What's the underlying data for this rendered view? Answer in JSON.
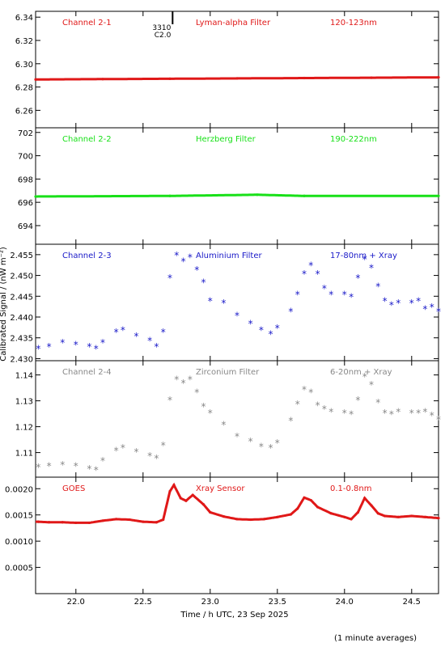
{
  "chart_data": {
    "type": "scatter",
    "xlabel": "Time / h UTC, 23 Sep 2025",
    "ylabel": "Calibrated Signal / (nW m⁻²)",
    "footnote": "(1 minute averages)",
    "xlim": [
      21.7,
      24.7
    ],
    "xticks": [
      "22.0",
      "22.5",
      "23.0",
      "23.5",
      "24.0",
      "24.5"
    ],
    "panels": [
      {
        "channel": "Channel 2-1",
        "filter": "Lyman-alpha Filter",
        "band": "120-123nm",
        "color": "#e01818",
        "marker": "line",
        "ylim": [
          6.245,
          6.345
        ],
        "yticks": [
          "6.34",
          "6.32",
          "6.30",
          "6.28",
          "6.26"
        ],
        "annotation": {
          "lines": [
            "3310",
            "C2.0"
          ],
          "x": 22.72
        },
        "x": [
          21.7,
          22.2,
          22.7,
          23.2,
          23.7,
          24.2,
          24.7
        ],
        "y": [
          6.2865,
          6.2868,
          6.2871,
          6.2874,
          6.2877,
          6.288,
          6.2883
        ]
      },
      {
        "channel": "Channel 2-2",
        "filter": "Herzberg Filter",
        "band": "190-222nm",
        "color": "#18e018",
        "marker": "line",
        "ylim": [
          692.4,
          702.4
        ],
        "yticks": [
          "702",
          "700",
          "698",
          "696",
          "694"
        ],
        "x": [
          21.7,
          22.7,
          23.35,
          23.7,
          24.7
        ],
        "y": [
          696.5,
          696.55,
          696.65,
          696.55,
          696.55
        ]
      },
      {
        "channel": "Channel 2-3",
        "filter": "Aluminium Filter",
        "band": "17-80nm + Xray",
        "color": "#1818c8",
        "marker": "star",
        "ylim": [
          2.4295,
          2.4575
        ],
        "yticks": [
          "2.455",
          "2.450",
          "2.445",
          "2.440",
          "2.435",
          "2.430"
        ],
        "x": [
          21.72,
          21.8,
          21.9,
          22.0,
          22.1,
          22.15,
          22.2,
          22.3,
          22.35,
          22.45,
          22.55,
          22.6,
          22.65,
          22.7,
          22.75,
          22.8,
          22.85,
          22.9,
          22.95,
          23.0,
          23.1,
          23.2,
          23.3,
          23.38,
          23.45,
          23.5,
          23.6,
          23.65,
          23.7,
          23.75,
          23.8,
          23.85,
          23.9,
          24.0,
          24.05,
          24.1,
          24.15,
          24.2,
          24.25,
          24.3,
          24.35,
          24.4,
          24.5,
          24.55,
          24.6,
          24.65,
          24.7
        ],
        "y": [
          2.4325,
          2.433,
          2.434,
          2.4335,
          2.433,
          2.4325,
          2.434,
          2.4365,
          2.437,
          2.4355,
          2.4345,
          2.433,
          2.4365,
          2.4495,
          2.455,
          2.4535,
          2.4545,
          2.4515,
          2.4485,
          2.444,
          2.4435,
          2.4405,
          2.4385,
          2.437,
          2.436,
          2.4375,
          2.4415,
          2.4455,
          2.4505,
          2.4525,
          2.4505,
          2.447,
          2.4455,
          2.4455,
          2.445,
          2.4495,
          2.454,
          2.452,
          2.4475,
          2.444,
          2.443,
          2.4435,
          2.4435,
          2.444,
          2.442,
          2.4425,
          2.4415
        ]
      },
      {
        "channel": "Channel 2-4",
        "filter": "Zirconium Filter",
        "band": "6-20nm + Xray",
        "color": "#888888",
        "marker": "star",
        "ylim": [
          1.1005,
          1.1455
        ],
        "yticks": [
          "1.14",
          "1.13",
          "1.12",
          "1.11"
        ],
        "x": [
          21.72,
          21.8,
          21.9,
          22.0,
          22.1,
          22.15,
          22.2,
          22.3,
          22.35,
          22.45,
          22.55,
          22.6,
          22.65,
          22.7,
          22.75,
          22.8,
          22.85,
          22.9,
          22.95,
          23.0,
          23.1,
          23.2,
          23.3,
          23.38,
          23.45,
          23.5,
          23.6,
          23.65,
          23.7,
          23.75,
          23.8,
          23.85,
          23.9,
          24.0,
          24.05,
          24.1,
          24.15,
          24.2,
          24.25,
          24.3,
          24.35,
          24.4,
          24.5,
          24.55,
          24.6,
          24.65,
          24.7
        ],
        "y": [
          1.1045,
          1.105,
          1.1055,
          1.105,
          1.104,
          1.1035,
          1.107,
          1.111,
          1.112,
          1.1105,
          1.109,
          1.108,
          1.113,
          1.1305,
          1.1385,
          1.137,
          1.1385,
          1.1335,
          1.128,
          1.1255,
          1.121,
          1.1165,
          1.1145,
          1.1125,
          1.112,
          1.114,
          1.1225,
          1.129,
          1.1345,
          1.1335,
          1.1285,
          1.127,
          1.126,
          1.1255,
          1.125,
          1.1305,
          1.1395,
          1.1365,
          1.1295,
          1.1255,
          1.125,
          1.126,
          1.1255,
          1.1255,
          1.126,
          1.1245,
          1.123
        ]
      },
      {
        "channel": "GOES",
        "filter": "Xray Sensor",
        "band": "0.1-0.8nm",
        "color": "#e01818",
        "marker": "line",
        "ylim": [
          0.0,
          0.00222
        ],
        "yticks": [
          "0.0020",
          "0.0015",
          "0.0010",
          "0.0005"
        ],
        "x": [
          21.72,
          21.8,
          21.9,
          22.0,
          22.1,
          22.2,
          22.3,
          22.4,
          22.5,
          22.6,
          22.65,
          22.7,
          22.73,
          22.78,
          22.82,
          22.87,
          22.95,
          23.0,
          23.1,
          23.2,
          23.3,
          23.4,
          23.5,
          23.6,
          23.65,
          23.7,
          23.75,
          23.8,
          23.9,
          24.0,
          24.05,
          24.1,
          24.15,
          24.2,
          24.25,
          24.3,
          24.4,
          24.5,
          24.6,
          24.7
        ],
        "y": [
          0.00137,
          0.00136,
          0.00136,
          0.00135,
          0.00135,
          0.00139,
          0.00142,
          0.00141,
          0.00137,
          0.00136,
          0.00141,
          0.00195,
          0.00207,
          0.00182,
          0.00177,
          0.00188,
          0.0017,
          0.00155,
          0.00147,
          0.00142,
          0.00141,
          0.00142,
          0.00146,
          0.00151,
          0.00162,
          0.00183,
          0.00178,
          0.00165,
          0.00153,
          0.00146,
          0.00142,
          0.00155,
          0.00182,
          0.00168,
          0.00153,
          0.00148,
          0.00146,
          0.00148,
          0.00146,
          0.00144
        ]
      }
    ]
  }
}
